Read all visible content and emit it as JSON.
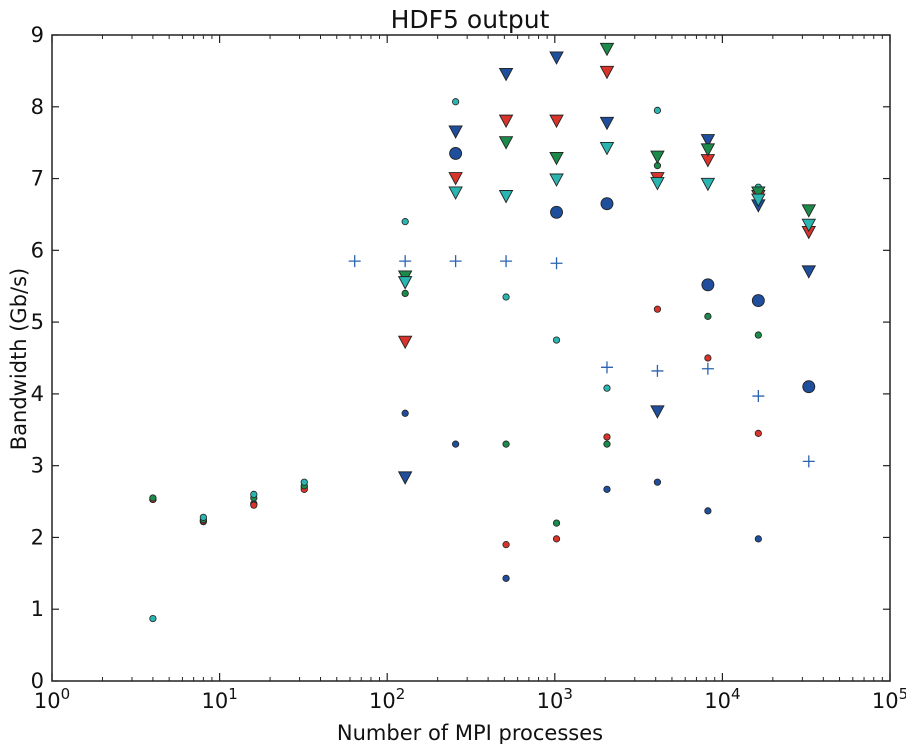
{
  "chart_data": {
    "type": "scatter",
    "title": "HDF5 output",
    "xlabel": "Number of MPI processes",
    "ylabel": "Bandwidth (Gb/s)",
    "xscale": "log",
    "xlim": [
      1,
      100000
    ],
    "ylim": [
      0,
      9
    ],
    "xticks": [
      {
        "value": 1,
        "base": "10",
        "exp": "0"
      },
      {
        "value": 10,
        "base": "10",
        "exp": "1"
      },
      {
        "value": 100,
        "base": "10",
        "exp": "2"
      },
      {
        "value": 1000,
        "base": "10",
        "exp": "3"
      },
      {
        "value": 10000,
        "base": "10",
        "exp": "4"
      },
      {
        "value": 100000,
        "base": "10",
        "exp": "5"
      }
    ],
    "yticks": [
      0,
      1,
      2,
      3,
      4,
      5,
      6,
      7,
      8,
      9
    ],
    "grid": false,
    "series": [
      {
        "marker": "circle-small",
        "color": "#1f4e9c",
        "points": [
          [
            4,
            2.53
          ],
          [
            8,
            2.22
          ],
          [
            16,
            2.47
          ],
          [
            32,
            2.7
          ],
          [
            128,
            3.73
          ],
          [
            256,
            3.3
          ],
          [
            512,
            1.43
          ],
          [
            2048,
            2.67
          ],
          [
            4096,
            2.77
          ],
          [
            8192,
            2.37
          ],
          [
            16384,
            1.98
          ]
        ]
      },
      {
        "marker": "circle-small",
        "color": "#d8342c",
        "points": [
          [
            4,
            2.53
          ],
          [
            8,
            2.23
          ],
          [
            16,
            2.45
          ],
          [
            32,
            2.67
          ],
          [
            512,
            1.9
          ],
          [
            1024,
            1.98
          ],
          [
            2048,
            3.4
          ],
          [
            4096,
            5.18
          ],
          [
            8192,
            4.5
          ],
          [
            16384,
            3.45
          ]
        ]
      },
      {
        "marker": "circle-small",
        "color": "#1b8a4a",
        "points": [
          [
            4,
            2.55
          ],
          [
            8,
            2.25
          ],
          [
            16,
            2.55
          ],
          [
            32,
            2.72
          ],
          [
            128,
            5.4
          ],
          [
            512,
            3.3
          ],
          [
            1024,
            2.2
          ],
          [
            2048,
            3.3
          ],
          [
            4096,
            7.18
          ],
          [
            8192,
            5.08
          ],
          [
            16384,
            4.82
          ]
        ]
      },
      {
        "marker": "circle-small",
        "color": "#2ab5b0",
        "points": [
          [
            4,
            0.87
          ],
          [
            8,
            2.28
          ],
          [
            16,
            2.6
          ],
          [
            32,
            2.77
          ],
          [
            128,
            6.4
          ],
          [
            256,
            8.07
          ],
          [
            512,
            5.35
          ],
          [
            1024,
            4.75
          ],
          [
            2048,
            4.08
          ],
          [
            4096,
            7.95
          ],
          [
            16384,
            6.88
          ]
        ]
      },
      {
        "marker": "circle-large",
        "color": "#1f4e9c",
        "points": [
          [
            256,
            7.35
          ],
          [
            1024,
            6.53
          ],
          [
            2048,
            6.65
          ],
          [
            8192,
            5.52
          ],
          [
            16384,
            5.3
          ],
          [
            32768,
            4.1
          ]
        ]
      },
      {
        "marker": "plus",
        "color": "#2b63b0",
        "points": [
          [
            64,
            5.85
          ],
          [
            128,
            5.85
          ],
          [
            256,
            5.85
          ],
          [
            512,
            5.85
          ],
          [
            1024,
            5.82
          ],
          [
            2048,
            4.37
          ],
          [
            4096,
            4.32
          ],
          [
            8192,
            4.35
          ],
          [
            16384,
            3.97
          ],
          [
            32768,
            3.06
          ]
        ]
      },
      {
        "marker": "triangle-down",
        "color": "#1f4e9c",
        "points": [
          [
            128,
            2.83
          ],
          [
            256,
            7.65
          ],
          [
            512,
            8.45
          ],
          [
            1024,
            8.68
          ],
          [
            2048,
            7.77
          ],
          [
            4096,
            3.75
          ],
          [
            8192,
            7.53
          ],
          [
            16384,
            6.62
          ],
          [
            32768,
            5.7
          ]
        ]
      },
      {
        "marker": "triangle-down",
        "color": "#d8342c",
        "points": [
          [
            128,
            4.72
          ],
          [
            256,
            7.0
          ],
          [
            512,
            7.8
          ],
          [
            1024,
            7.8
          ],
          [
            2048,
            8.48
          ],
          [
            4096,
            7.0
          ],
          [
            8192,
            7.25
          ],
          [
            16384,
            6.75
          ],
          [
            32768,
            6.25
          ]
        ]
      },
      {
        "marker": "triangle-down",
        "color": "#1b8a4a",
        "points": [
          [
            128,
            5.63
          ],
          [
            512,
            7.5
          ],
          [
            1024,
            7.28
          ],
          [
            2048,
            8.8
          ],
          [
            4096,
            7.3
          ],
          [
            8192,
            7.4
          ],
          [
            16384,
            6.8
          ],
          [
            32768,
            6.55
          ]
        ]
      },
      {
        "marker": "triangle-down",
        "color": "#2ab5b0",
        "points": [
          [
            128,
            5.55
          ],
          [
            256,
            6.8
          ],
          [
            512,
            6.75
          ],
          [
            1024,
            6.98
          ],
          [
            2048,
            7.42
          ],
          [
            4096,
            6.93
          ],
          [
            8192,
            6.92
          ],
          [
            16384,
            6.7
          ],
          [
            32768,
            6.35
          ]
        ]
      }
    ]
  }
}
